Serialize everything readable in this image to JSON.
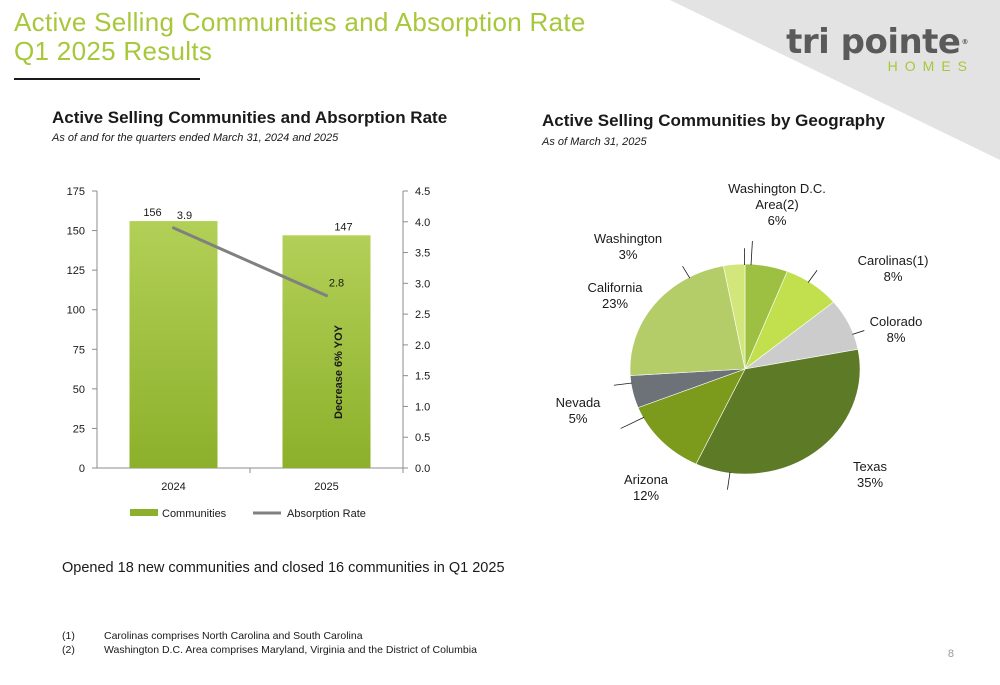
{
  "slide": {
    "title_line1": "Active Selling Communities and Absorption Rate",
    "title_line2": "Q1 2025 Results",
    "page_number": "8",
    "logo": {
      "word": "tri pointe",
      "sub": "HOMES",
      "reg": "®"
    },
    "note": "Opened 18 new communities and closed 16 communities in Q1 2025",
    "footnotes": [
      {
        "marker": "(1)",
        "text": "Carolinas comprises North Carolina and South Carolina"
      },
      {
        "marker": "(2)",
        "text": "Washington D.C. Area comprises Maryland, Virginia and the District of Columbia"
      }
    ]
  },
  "colors": {
    "title_green": "#a6c83a",
    "bar_top": "#b2d057",
    "bar_bottom": "#8cb02b",
    "absorption_line": "#808080",
    "corner_gray": "#e3e3e3"
  },
  "chart_data": [
    {
      "type": "bar",
      "title": "Active Selling Communities and Absorption Rate",
      "subtitle": "As of and for the quarters ended March 31, 2024 and 2025",
      "categories": [
        "2024",
        "2025"
      ],
      "series": [
        {
          "name": "Communities",
          "kind": "bar",
          "axis": "left",
          "values": [
            156,
            147
          ],
          "labels": [
            "156",
            "147"
          ]
        },
        {
          "name": "Absorption Rate",
          "kind": "line",
          "axis": "right",
          "values": [
            3.9,
            2.8
          ],
          "labels": [
            "3.9",
            "2.8"
          ]
        }
      ],
      "ylim_left": [
        0,
        175
      ],
      "yticks_left": [
        "0",
        "25",
        "50",
        "75",
        "100",
        "125",
        "150",
        "175"
      ],
      "ylim_right": [
        0,
        4.5
      ],
      "yticks_right": [
        "0.0",
        "0.5",
        "1.0",
        "1.5",
        "2.0",
        "2.5",
        "3.0",
        "3.5",
        "4.0",
        "4.5"
      ],
      "annotation": "Decrease 6% YOY",
      "legend_position": "bottom",
      "grid": false
    },
    {
      "type": "pie",
      "title": "Active Selling Communities by Geography",
      "subtitle": "As of March 31, 2025",
      "slices": [
        {
          "label": "Washington D.C. Area(2)",
          "value": 6,
          "text": "6%",
          "color": "#9dc043"
        },
        {
          "label": "Carolinas(1)",
          "value": 8,
          "text": "8%",
          "color": "#c2e04e"
        },
        {
          "label": "Colorado",
          "value": 8,
          "text": "8%",
          "color": "#cccccc"
        },
        {
          "label": "Texas",
          "value": 35,
          "text": "35%",
          "color": "#5d7a26"
        },
        {
          "label": "Arizona",
          "value": 12,
          "text": "12%",
          "color": "#7c9a1c"
        },
        {
          "label": "Nevada",
          "value": 5,
          "text": "5%",
          "color": "#6c7278"
        },
        {
          "label": "California",
          "value": 23,
          "text": "23%",
          "color": "#b4cd69"
        },
        {
          "label": "Washington",
          "value": 3,
          "text": "3%",
          "color": "#d3e67c"
        }
      ]
    }
  ]
}
